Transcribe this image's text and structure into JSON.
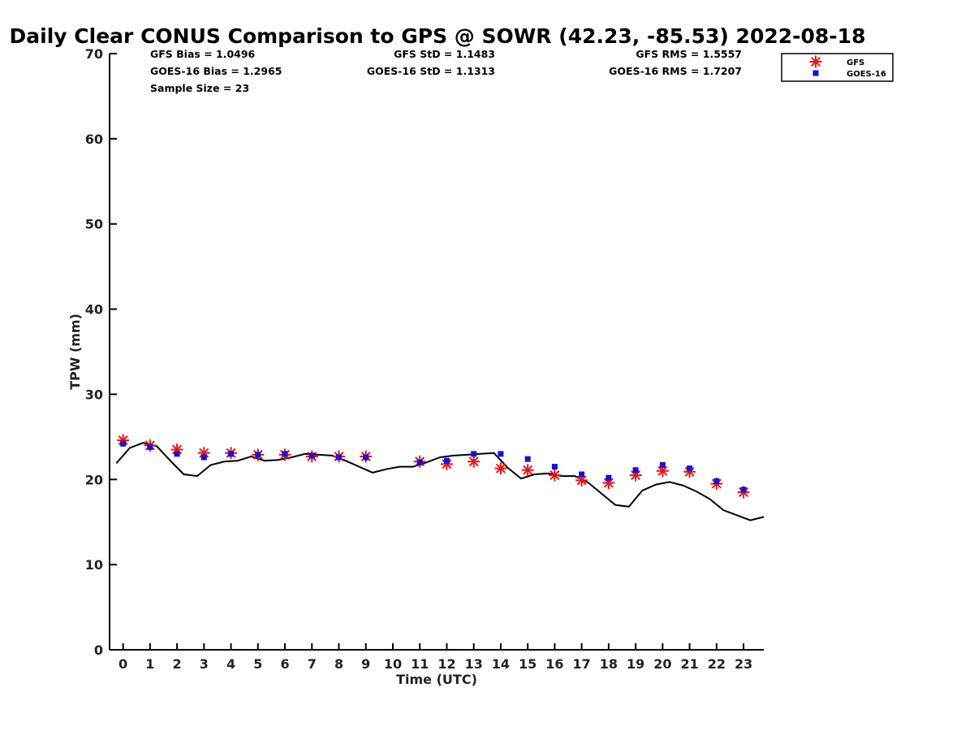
{
  "chart_data": {
    "type": "scatter",
    "title": "Daily Clear CONUS Comparison to GPS @ SOWR (42.23, -85.53) 2022-08-18",
    "xlabel": "Time (UTC)",
    "ylabel": "TPW (mm)",
    "xlim": [
      -0.5,
      23.75
    ],
    "ylim": [
      0,
      70
    ],
    "x_ticks": [
      0,
      1,
      2,
      3,
      4,
      5,
      6,
      7,
      8,
      9,
      10,
      11,
      12,
      13,
      14,
      15,
      16,
      17,
      18,
      19,
      20,
      21,
      22,
      23
    ],
    "y_ticks": [
      0,
      10,
      20,
      30,
      40,
      50,
      60,
      70
    ],
    "grid": false,
    "legend_position": "top-right",
    "stats": {
      "gfs_bias": "GFS Bias = 1.0496",
      "goes_bias": "GOES-16 Bias = 1.2965",
      "sample_size": "Sample Size = 23",
      "gfs_std": "GFS StD = 1.1483",
      "goes_std": "GOES-16 StD = 1.1313",
      "gfs_rms": "GFS RMS = 1.5557",
      "goes_rms": "GOES-16 RMS = 1.7207"
    },
    "series": [
      {
        "name": "GFS",
        "marker": "asterisk",
        "color": "#ee1111",
        "x": [
          0,
          1,
          2,
          3,
          4,
          5,
          6,
          7,
          8,
          9,
          11,
          12,
          13,
          14,
          15,
          16,
          17,
          18,
          19,
          20,
          21,
          22,
          23
        ],
        "y": [
          24.6,
          24.0,
          23.5,
          23.1,
          23.1,
          22.9,
          22.9,
          22.7,
          22.7,
          22.7,
          22.1,
          21.8,
          22.1,
          21.3,
          21.1,
          20.5,
          19.9,
          19.6,
          20.5,
          21.0,
          20.9,
          19.5,
          18.5
        ]
      },
      {
        "name": "GOES-16",
        "marker": "square",
        "color": "#1111dd",
        "x": [
          0,
          1,
          2,
          3,
          4,
          5,
          6,
          7,
          8,
          9,
          11,
          12,
          13,
          14,
          15,
          16,
          17,
          18,
          19,
          20,
          21,
          22,
          23
        ],
        "y": [
          24.2,
          23.8,
          23.0,
          22.6,
          23.0,
          22.9,
          23.0,
          22.8,
          22.6,
          22.6,
          22.0,
          22.2,
          23.0,
          23.0,
          22.4,
          21.5,
          20.6,
          20.2,
          21.1,
          21.7,
          21.3,
          19.8,
          18.8
        ]
      },
      {
        "name": "GPS",
        "marker": "line",
        "color": "#000000",
        "x": [
          -0.25,
          0.25,
          0.75,
          1.25,
          1.75,
          2.25,
          2.75,
          3.25,
          3.75,
          4.25,
          4.75,
          5.25,
          5.75,
          6.25,
          6.75,
          7.25,
          7.75,
          8.25,
          8.75,
          9.25,
          9.75,
          10.25,
          10.75,
          11.25,
          11.75,
          12.25,
          12.75,
          13.25,
          13.75,
          14.25,
          14.75,
          15.25,
          15.75,
          16.25,
          16.75,
          17.25,
          17.75,
          18.25,
          18.75,
          19.25,
          19.75,
          20.25,
          20.75,
          21.25,
          21.75,
          22.25,
          22.75,
          23.25,
          23.75
        ],
        "y": [
          21.9,
          23.7,
          24.3,
          23.9,
          22.2,
          20.6,
          20.4,
          21.7,
          22.1,
          22.2,
          22.7,
          22.2,
          22.3,
          22.6,
          23.0,
          22.9,
          22.8,
          22.2,
          21.5,
          20.8,
          21.2,
          21.5,
          21.5,
          22.0,
          22.6,
          22.8,
          22.9,
          23.0,
          23.1,
          21.4,
          20.1,
          20.6,
          20.7,
          20.4,
          20.4,
          19.6,
          18.3,
          17.0,
          16.8,
          18.7,
          19.4,
          19.7,
          19.3,
          18.6,
          17.7,
          16.4,
          15.8,
          15.2,
          15.6
        ]
      }
    ]
  }
}
